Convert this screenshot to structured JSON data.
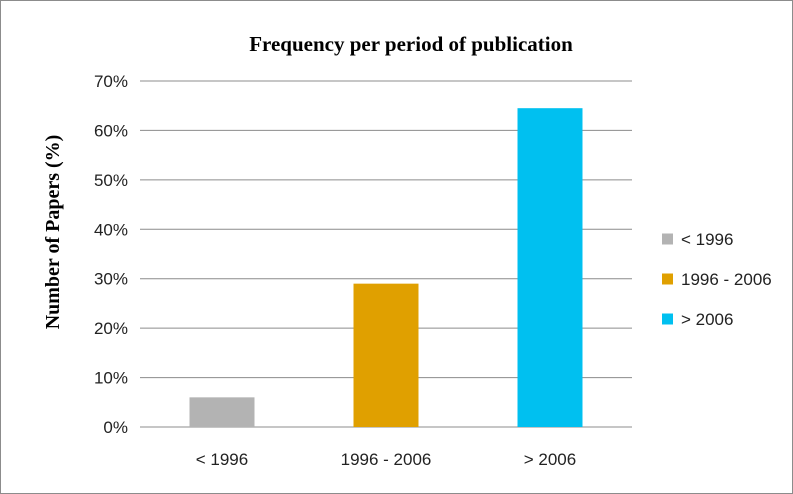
{
  "chart_data": {
    "type": "bar",
    "title": "Frequency per period of publication",
    "xlabel": "",
    "ylabel": "Number of Papers (%)",
    "categories": [
      "< 1996",
      "1996 - 2006",
      "> 2006"
    ],
    "values": [
      6,
      29,
      64.5
    ],
    "value_unit": "%",
    "ylim": [
      0,
      70
    ],
    "yticks": [
      0,
      10,
      20,
      30,
      40,
      50,
      60,
      70
    ],
    "ytick_labels": [
      "0%",
      "10%",
      "20%",
      "30%",
      "40%",
      "50%",
      "60%",
      "70%"
    ],
    "grid": true,
    "legend": {
      "position": "right",
      "entries": [
        "< 1996",
        "1996 - 2006",
        "> 2006"
      ]
    },
    "colors": [
      "#b3b3b3",
      "#e0a000",
      "#00c0f0"
    ]
  }
}
